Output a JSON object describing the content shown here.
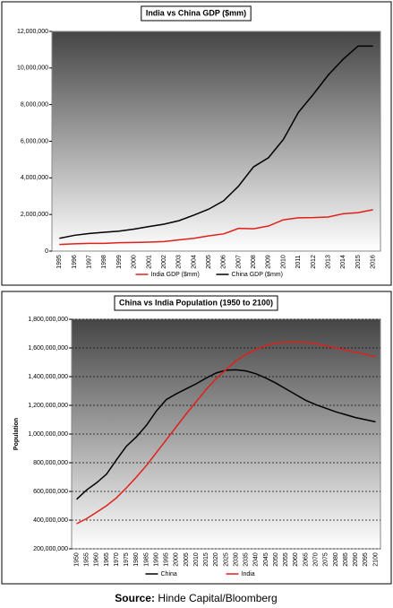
{
  "chart_data": [
    {
      "type": "line",
      "title": "India vs China GDP ($mm)",
      "categories": [
        "1995",
        "1996",
        "1997",
        "1998",
        "1999",
        "2000",
        "2001",
        "2002",
        "2003",
        "2004",
        "2005",
        "2006",
        "2007",
        "2008",
        "2009",
        "2010",
        "2011",
        "2012",
        "2013",
        "2014",
        "2015",
        "2016"
      ],
      "series": [
        {
          "name": "India GDP ($mm)",
          "color": "#e0201b",
          "values": [
            360000,
            400000,
            420000,
            420000,
            460000,
            470000,
            490000,
            520000,
            610000,
            700000,
            830000,
            940000,
            1240000,
            1220000,
            1370000,
            1710000,
            1820000,
            1830000,
            1860000,
            2040000,
            2100000,
            2260000
          ]
        },
        {
          "name": "China GDP ($mm)",
          "color": "#000000",
          "values": [
            700000,
            860000,
            960000,
            1030000,
            1090000,
            1200000,
            1340000,
            1470000,
            1660000,
            1960000,
            2290000,
            2750000,
            3550000,
            4600000,
            5100000,
            6100000,
            7570000,
            8560000,
            9610000,
            10480000,
            11200000,
            11200000
          ]
        }
      ],
      "ylim": [
        0,
        12000000
      ],
      "yticks": [
        0,
        {
          "value": 2000000,
          "label": "2,000,000"
        },
        {
          "value": 4000000,
          "label": "4,000,000"
        },
        {
          "value": 6000000,
          "label": "6,000,000"
        },
        {
          "value": 8000000,
          "label": "8,000,000"
        },
        {
          "value": 10000000,
          "label": "10,000,000"
        },
        {
          "value": 12000000,
          "label": "12,000,000"
        }
      ],
      "grid": false,
      "legend": "bottom"
    },
    {
      "type": "line",
      "title": "China vs India Population (1950 to 2100)",
      "y_label": "Population",
      "categories": [
        "1950",
        "1955",
        "1960",
        "1965",
        "1970",
        "1975",
        "1980",
        "1985",
        "1990",
        "1995",
        "2000",
        "2005",
        "2010",
        "2015",
        "2020",
        "2025",
        "2030",
        "2035",
        "2040",
        "2045",
        "2050",
        "2055",
        "2060",
        "2065",
        "2070",
        "2075",
        "2080",
        "2085",
        "2090",
        "2095",
        "2100"
      ],
      "series": [
        {
          "name": "China",
          "color": "#000000",
          "values": [
            545000000,
            610000000,
            660000000,
            720000000,
            820000000,
            915000000,
            980000000,
            1060000000,
            1160000000,
            1240000000,
            1280000000,
            1315000000,
            1350000000,
            1390000000,
            1425000000,
            1445000000,
            1448000000,
            1440000000,
            1420000000,
            1390000000,
            1355000000,
            1315000000,
            1275000000,
            1235000000,
            1205000000,
            1180000000,
            1155000000,
            1135000000,
            1115000000,
            1100000000,
            1085000000
          ]
        },
        {
          "name": "India",
          "color": "#e0201b",
          "values": [
            375000000,
            410000000,
            455000000,
            500000000,
            555000000,
            625000000,
            700000000,
            780000000,
            870000000,
            960000000,
            1050000000,
            1140000000,
            1225000000,
            1310000000,
            1385000000,
            1450000000,
            1510000000,
            1555000000,
            1590000000,
            1615000000,
            1635000000,
            1640000000,
            1640000000,
            1640000000,
            1630000000,
            1615000000,
            1600000000,
            1585000000,
            1570000000,
            1555000000,
            1540000000
          ]
        }
      ],
      "ylim": [
        200000000,
        1800000000
      ],
      "yticks": [
        {
          "value": 200000000,
          "label": "200,000,000"
        },
        {
          "value": 400000000,
          "label": "400,000,000"
        },
        {
          "value": 600000000,
          "label": "600,000,000"
        },
        {
          "value": 800000000,
          "label": "800,000,000"
        },
        {
          "value": 1000000000,
          "label": "1,000,000,000"
        },
        {
          "value": 1200000000,
          "label": "1,200,000,000"
        },
        {
          "value": 1400000000,
          "label": "1,400,000,000"
        },
        {
          "value": 1600000000,
          "label": "1,600,000,000"
        },
        {
          "value": 1800000000,
          "label": "1,800,000,000"
        }
      ],
      "grid": true,
      "legend": "bottom"
    }
  ],
  "source": {
    "label": "Source:",
    "text": "Hinde Capital/Bloomberg"
  }
}
